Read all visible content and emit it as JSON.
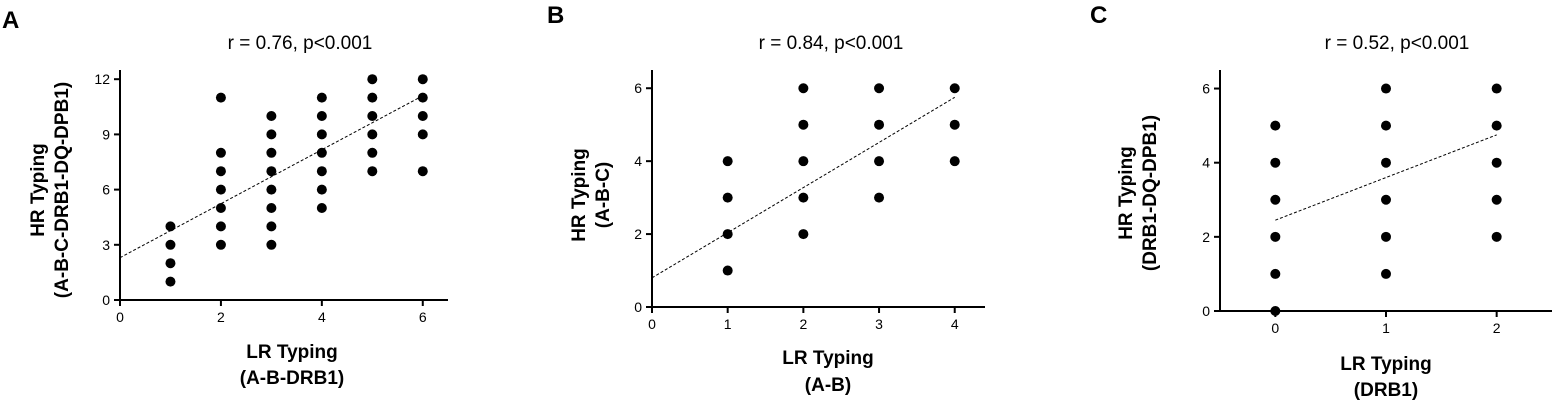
{
  "chart_data": [
    {
      "panel": "A",
      "type": "scatter",
      "annotation": "r = 0.76, p<0.001",
      "xlabel": [
        "LR Typing",
        "(A-B-DRB1)"
      ],
      "ylabel": [
        "HR Typing",
        "(A-B-C-DRB1-DQ-DPB1)"
      ],
      "xlim": [
        0,
        6.5
      ],
      "ylim": [
        0,
        12.5
      ],
      "xticks": [
        0,
        2,
        4,
        6
      ],
      "yticks": [
        0,
        3,
        6,
        9,
        12
      ],
      "grid": false,
      "points": [
        [
          1,
          1
        ],
        [
          1,
          2
        ],
        [
          1,
          3
        ],
        [
          1,
          4
        ],
        [
          2,
          3
        ],
        [
          2,
          4
        ],
        [
          2,
          5
        ],
        [
          2,
          6
        ],
        [
          2,
          7
        ],
        [
          2,
          8
        ],
        [
          2,
          11
        ],
        [
          3,
          3
        ],
        [
          3,
          4
        ],
        [
          3,
          5
        ],
        [
          3,
          6
        ],
        [
          3,
          7
        ],
        [
          3,
          8
        ],
        [
          3,
          9
        ],
        [
          3,
          10
        ],
        [
          4,
          5
        ],
        [
          4,
          6
        ],
        [
          4,
          7
        ],
        [
          4,
          8
        ],
        [
          4,
          9
        ],
        [
          4,
          10
        ],
        [
          4,
          11
        ],
        [
          5,
          7
        ],
        [
          5,
          8
        ],
        [
          5,
          9
        ],
        [
          5,
          10
        ],
        [
          5,
          11
        ],
        [
          5,
          12
        ],
        [
          6,
          7
        ],
        [
          6,
          9
        ],
        [
          6,
          10
        ],
        [
          6,
          11
        ],
        [
          6,
          12
        ]
      ],
      "regression": {
        "x": [
          0,
          6
        ],
        "y": [
          2.3,
          11.1
        ],
        "style": "dashed"
      }
    },
    {
      "panel": "B",
      "type": "scatter",
      "annotation": "r = 0.84, p<0.001",
      "xlabel": [
        "LR Typing",
        "(A-B)"
      ],
      "ylabel": [
        "HR Typing",
        "(A-B-C)"
      ],
      "xlim": [
        0,
        4.4
      ],
      "ylim": [
        0,
        6.5
      ],
      "xticks": [
        0,
        1,
        2,
        3,
        4
      ],
      "yticks": [
        0,
        2,
        4,
        6
      ],
      "grid": false,
      "points": [
        [
          1,
          1
        ],
        [
          1,
          2
        ],
        [
          1,
          3
        ],
        [
          1,
          4
        ],
        [
          2,
          2
        ],
        [
          2,
          3
        ],
        [
          2,
          4
        ],
        [
          2,
          5
        ],
        [
          2,
          6
        ],
        [
          3,
          3
        ],
        [
          3,
          4
        ],
        [
          3,
          5
        ],
        [
          3,
          6
        ],
        [
          4,
          4
        ],
        [
          4,
          5
        ],
        [
          4,
          6
        ]
      ],
      "regression": {
        "x": [
          0,
          4
        ],
        "y": [
          0.8,
          5.75
        ],
        "style": "dashed"
      }
    },
    {
      "panel": "C",
      "type": "scatter",
      "annotation": "r = 0.52, p<0.001",
      "xlabel": [
        "LR Typing",
        "(DRB1)"
      ],
      "ylabel": [
        "HR Typing",
        "(DRB1-DQ-DPB1)"
      ],
      "xlim": [
        -0.5,
        2.5
      ],
      "ylim": [
        0,
        6.5
      ],
      "xticks": [
        0,
        1,
        2
      ],
      "yticks": [
        0,
        2,
        4,
        6
      ],
      "grid": false,
      "points": [
        [
          0,
          0
        ],
        [
          0,
          1
        ],
        [
          0,
          2
        ],
        [
          0,
          3
        ],
        [
          0,
          4
        ],
        [
          0,
          5
        ],
        [
          1,
          1
        ],
        [
          1,
          2
        ],
        [
          1,
          3
        ],
        [
          1,
          4
        ],
        [
          1,
          5
        ],
        [
          1,
          6
        ],
        [
          2,
          2
        ],
        [
          2,
          3
        ],
        [
          2,
          4
        ],
        [
          2,
          5
        ],
        [
          2,
          6
        ]
      ],
      "regression": {
        "x": [
          0,
          2
        ],
        "y": [
          2.45,
          4.75
        ],
        "style": "dashed"
      }
    }
  ]
}
